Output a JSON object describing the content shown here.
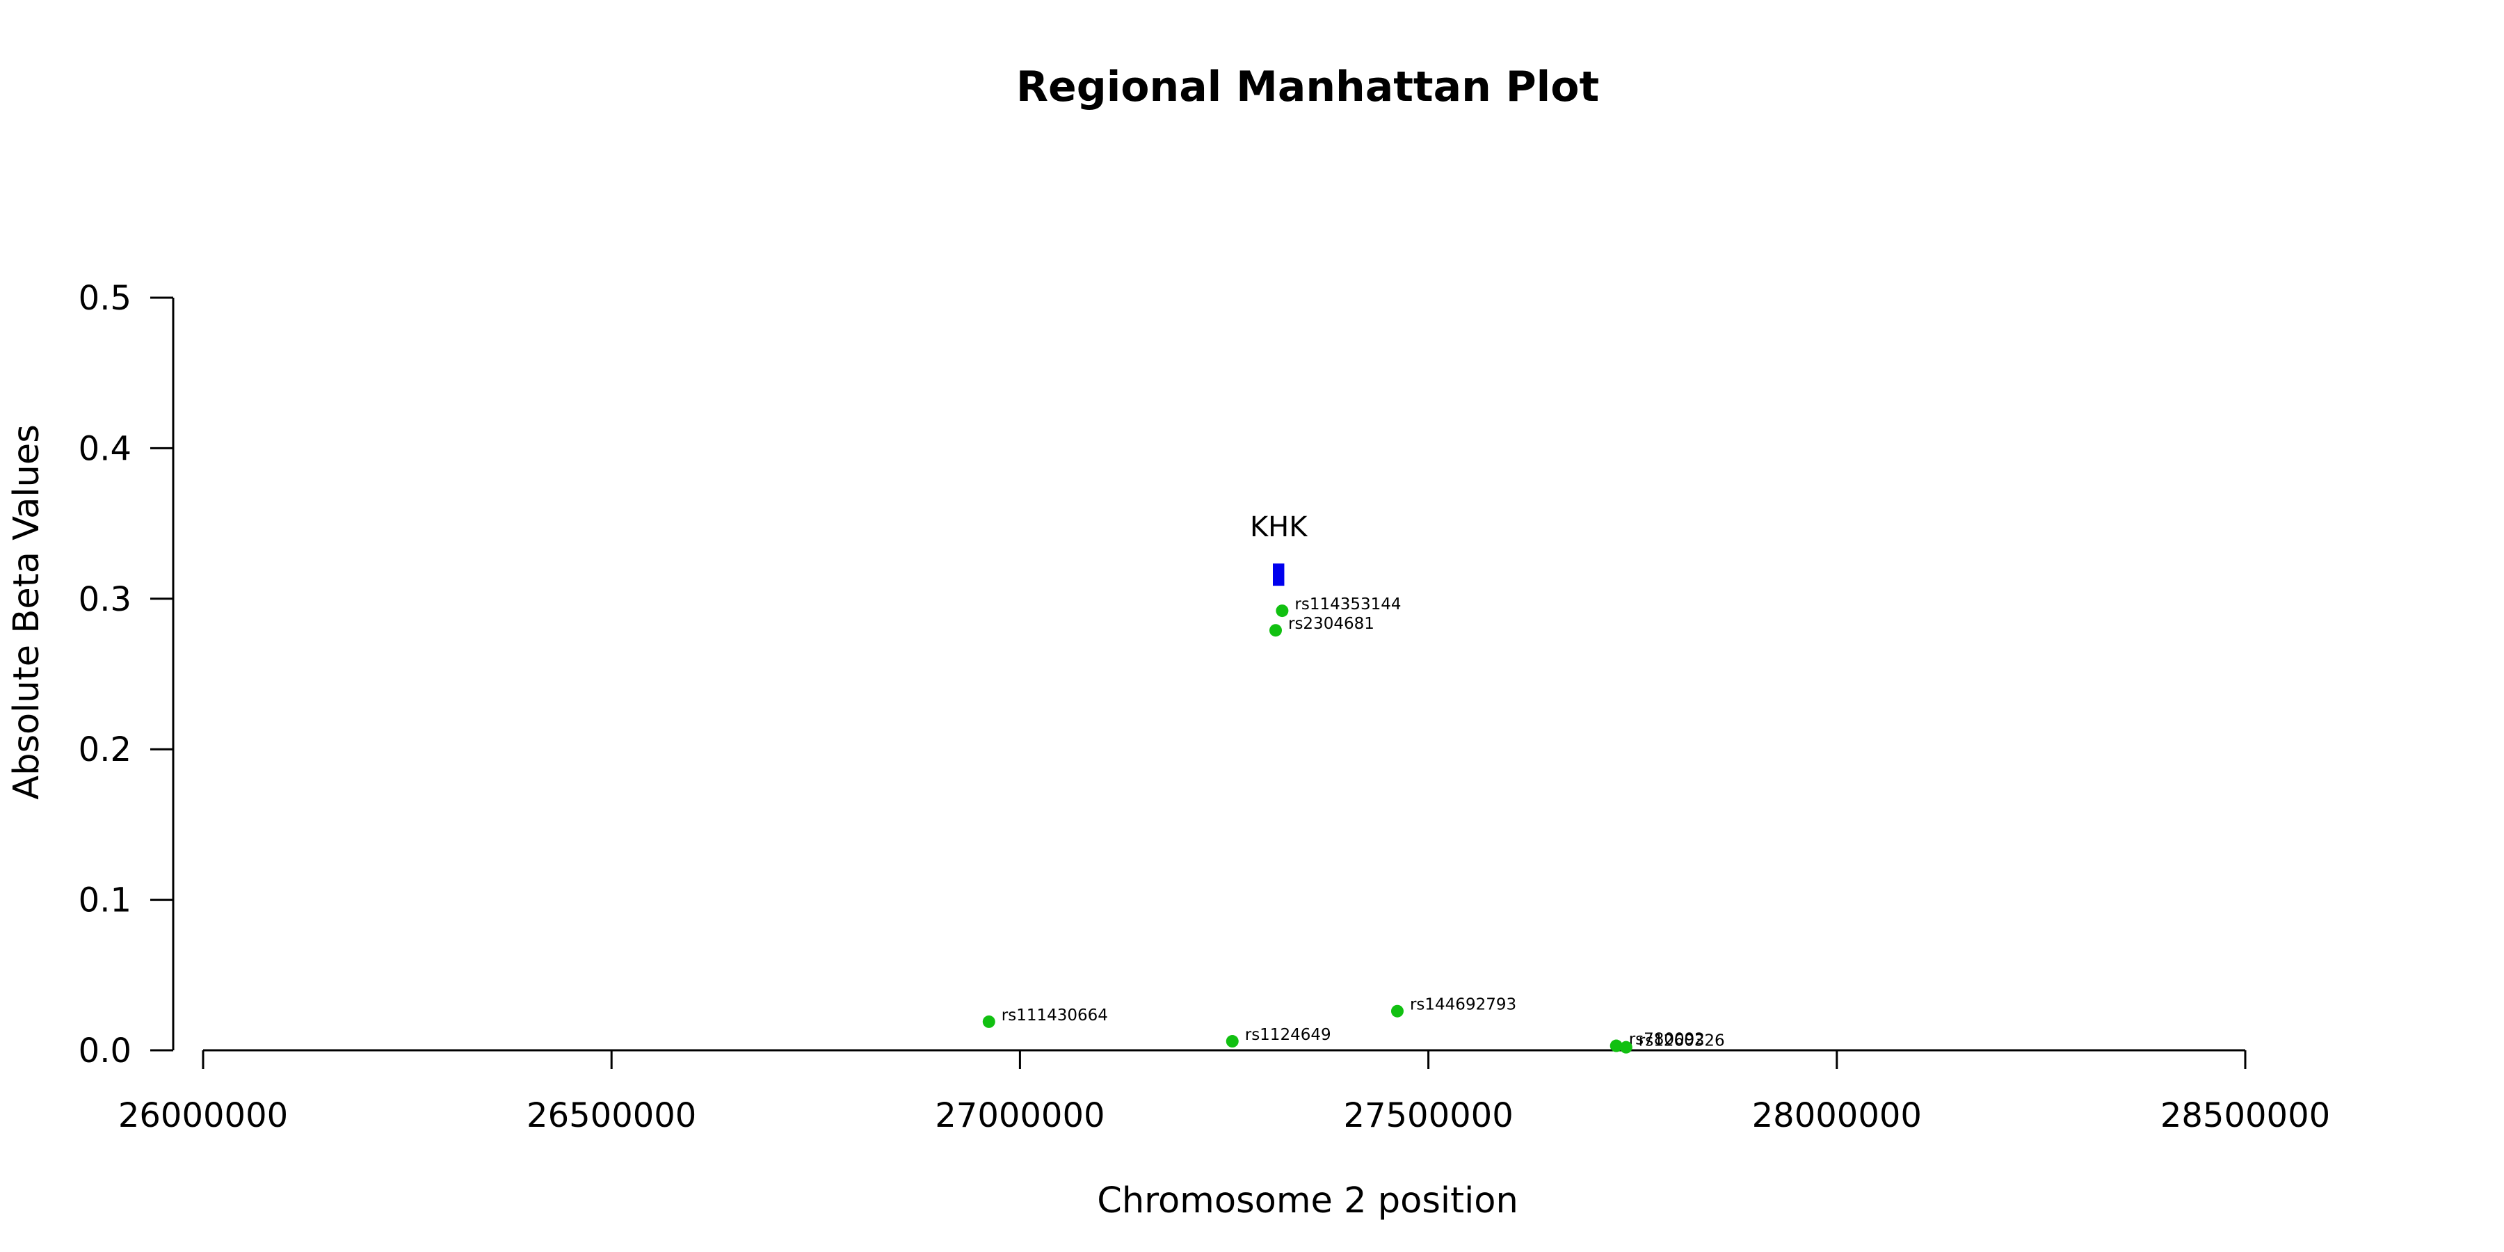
{
  "chart_data": {
    "type": "scatter",
    "title": "Regional Manhattan Plot",
    "xlabel": "Chromosome 2 position",
    "ylabel": "Absolute Beta Values",
    "xlim": [
      26000000,
      28500000
    ],
    "ylim": [
      0,
      0.5
    ],
    "x_ticks": [
      "26000000",
      "26500000",
      "27000000",
      "27500000",
      "28000000",
      "28500000"
    ],
    "y_ticks": [
      "0.0",
      "0.1",
      "0.2",
      "0.3",
      "0.4",
      "0.5"
    ],
    "grid": false,
    "point_color": "#11c011",
    "gene_color": "#0000ee",
    "gene": {
      "name": "KHK",
      "start": 27309600,
      "end": 27323600,
      "y": 0.316
    },
    "points": [
      {
        "label": "rs114353144",
        "x": 27321000,
        "y": 0.292
      },
      {
        "label": "rs2304681",
        "x": 27313000,
        "y": 0.279
      },
      {
        "label": "rs111430664",
        "x": 26962000,
        "y": 0.019
      },
      {
        "label": "rs1124649",
        "x": 27260000,
        "y": 0.006
      },
      {
        "label": "rs144692793",
        "x": 27462000,
        "y": 0.026
      },
      {
        "label": "rs780092",
        "x": 27730000,
        "y": 0.003
      },
      {
        "label": "rs1260326",
        "x": 27742000,
        "y": 0.002
      }
    ]
  }
}
